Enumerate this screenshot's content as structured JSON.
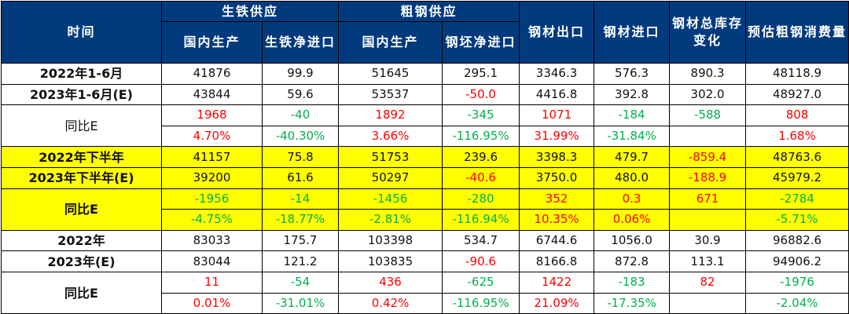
{
  "colors": {
    "header_bg": "#023A7E",
    "highlight": "#FFFF00",
    "positive": "#FF0000",
    "negative": "#00B050"
  },
  "header": {
    "time": "时间",
    "pig_iron_supply": "生铁供应",
    "crude_steel_supply": "粗钢供应",
    "domestic_production_1": "国内生产",
    "pig_iron_net_import": "生铁净进口",
    "domestic_production_2": "国内生产",
    "billet_net_import": "钢坯净进口",
    "steel_export": "钢材出口",
    "steel_import": "钢材进口",
    "steel_inventory_change": "钢材总库存变化",
    "est_crude_steel_consumption": "预估粗钢消费量"
  },
  "groups": [
    {
      "highlight": false,
      "yoy_bold": false,
      "rows": [
        {
          "label": "2022年1-6月",
          "cells": [
            [
              "41876",
              ""
            ],
            [
              "99.9",
              ""
            ],
            [
              "51645",
              ""
            ],
            [
              "295.1",
              ""
            ],
            [
              "3346.3",
              ""
            ],
            [
              "576.3",
              ""
            ],
            [
              "890.3",
              ""
            ],
            [
              "48118.9",
              ""
            ]
          ]
        },
        {
          "label": "2023年1-6月(E)",
          "cells": [
            [
              "43844",
              ""
            ],
            [
              "59.6",
              ""
            ],
            [
              "53537",
              ""
            ],
            [
              "-50.0",
              "red"
            ],
            [
              "4416.8",
              ""
            ],
            [
              "392.8",
              ""
            ],
            [
              "302.0",
              ""
            ],
            [
              "48927.0",
              ""
            ]
          ]
        }
      ],
      "yoy_label": "同比E",
      "yoy": [
        [
          [
            "1968",
            "red"
          ],
          [
            "-40",
            "green"
          ],
          [
            "1892",
            "red"
          ],
          [
            "-345",
            "green"
          ],
          [
            "1071",
            "red"
          ],
          [
            "-184",
            "green"
          ],
          [
            "-588",
            "green"
          ],
          [
            "808",
            "red"
          ]
        ],
        [
          [
            "4.70%",
            "red"
          ],
          [
            "-40.30%",
            "green"
          ],
          [
            "3.66%",
            "red"
          ],
          [
            "-116.95%",
            "green"
          ],
          [
            "31.99%",
            "red"
          ],
          [
            "-31.84%",
            "green"
          ],
          [
            "",
            ""
          ],
          [
            "1.68%",
            "red"
          ]
        ]
      ]
    },
    {
      "highlight": true,
      "yoy_bold": true,
      "rows": [
        {
          "label": "2022年下半年",
          "cells": [
            [
              "41157",
              ""
            ],
            [
              "75.8",
              ""
            ],
            [
              "51753",
              ""
            ],
            [
              "239.6",
              ""
            ],
            [
              "3398.3",
              ""
            ],
            [
              "479.7",
              ""
            ],
            [
              "-859.4",
              "red"
            ],
            [
              "48763.6",
              ""
            ]
          ]
        },
        {
          "label": "2023年下半年(E)",
          "cells": [
            [
              "39200",
              ""
            ],
            [
              "61.6",
              ""
            ],
            [
              "50297",
              ""
            ],
            [
              "-40.6",
              "red"
            ],
            [
              "3750.0",
              ""
            ],
            [
              "480.0",
              ""
            ],
            [
              "-188.9",
              "red"
            ],
            [
              "45979.2",
              ""
            ]
          ]
        }
      ],
      "yoy_label": "同比E",
      "yoy": [
        [
          [
            "-1956",
            "green"
          ],
          [
            "-14",
            "green"
          ],
          [
            "-1456",
            "green"
          ],
          [
            "-280",
            "green"
          ],
          [
            "352",
            "red"
          ],
          [
            "0.3",
            "red"
          ],
          [
            "671",
            "red"
          ],
          [
            "-2784",
            "green"
          ]
        ],
        [
          [
            "-4.75%",
            "green"
          ],
          [
            "-18.77%",
            "green"
          ],
          [
            "-2.81%",
            "green"
          ],
          [
            "-116.94%",
            "green"
          ],
          [
            "10.35%",
            "red"
          ],
          [
            "0.06%",
            "red"
          ],
          [
            "",
            ""
          ],
          [
            "-5.71%",
            "green"
          ]
        ]
      ]
    },
    {
      "highlight": false,
      "yoy_bold": true,
      "rows": [
        {
          "label": "2022年",
          "cells": [
            [
              "83033",
              ""
            ],
            [
              "175.7",
              ""
            ],
            [
              "103398",
              ""
            ],
            [
              "534.7",
              ""
            ],
            [
              "6744.6",
              ""
            ],
            [
              "1056.0",
              ""
            ],
            [
              "30.9",
              ""
            ],
            [
              "96882.6",
              ""
            ]
          ]
        },
        {
          "label": "2023年(E)",
          "cells": [
            [
              "83044",
              ""
            ],
            [
              "121.2",
              ""
            ],
            [
              "103835",
              ""
            ],
            [
              "-90.6",
              "red"
            ],
            [
              "8166.8",
              ""
            ],
            [
              "872.8",
              ""
            ],
            [
              "113.1",
              ""
            ],
            [
              "94906.2",
              ""
            ]
          ]
        }
      ],
      "yoy_label": "同比E",
      "yoy": [
        [
          [
            "11",
            "red"
          ],
          [
            "-54",
            "green"
          ],
          [
            "436",
            "red"
          ],
          [
            "-625",
            "green"
          ],
          [
            "1422",
            "red"
          ],
          [
            "-183",
            "green"
          ],
          [
            "82",
            "red"
          ],
          [
            "-1976",
            "green"
          ]
        ],
        [
          [
            "0.01%",
            "red"
          ],
          [
            "-31.01%",
            "green"
          ],
          [
            "0.42%",
            "red"
          ],
          [
            "-116.95%",
            "green"
          ],
          [
            "21.09%",
            "red"
          ],
          [
            "-17.35%",
            "green"
          ],
          [
            "",
            ""
          ],
          [
            "-2.04%",
            "green"
          ]
        ]
      ]
    }
  ]
}
